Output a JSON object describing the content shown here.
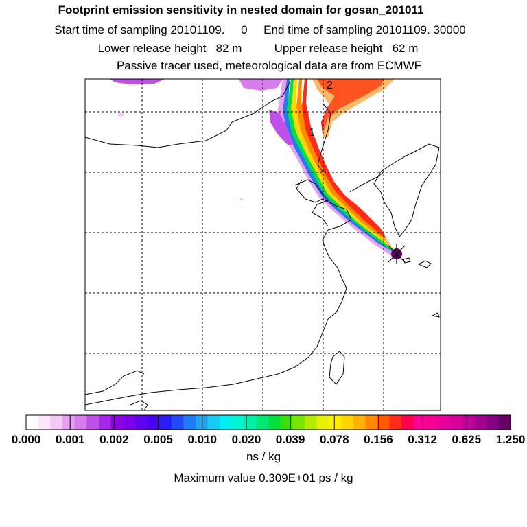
{
  "header": {
    "title": "Footprint emission sensitivity in nested domain for gosan_201011",
    "sampling": "Start time of sampling 20101109.     0     End time of sampling 20101109. 30000",
    "release": "Lower release height   82 m          Upper release height   62 m",
    "tracer": "Passive tracer used, meteorological data are from ECMWF"
  },
  "map": {
    "labels": [
      "1",
      "2"
    ],
    "receptor_marker": "star-icon"
  },
  "colorbar": {
    "colors": [
      "#ffffff",
      "#fde6fd",
      "#f6c8f8",
      "#e8a0f2",
      "#d67ced",
      "#c050ea",
      "#a628ea",
      "#9100ea",
      "#7c00ec",
      "#6200f0",
      "#4a00f4",
      "#2d1cf6",
      "#1f4af6",
      "#1d7cf6",
      "#1ba6f4",
      "#16ccf0",
      "#00f0f0",
      "#00f6d0",
      "#00f0a6",
      "#00e878",
      "#00e040",
      "#3ce000",
      "#7ae600",
      "#b2ec00",
      "#e6f000",
      "#ffee00",
      "#ffd600",
      "#ffb400",
      "#ff8a00",
      "#ff5a00",
      "#ff2a1a",
      "#ff0050",
      "#ff0096",
      "#f60096",
      "#e8009a",
      "#d8009c",
      "#c0009a",
      "#a40090",
      "#860082",
      "#640066"
    ],
    "ticks": [
      "0.000",
      "0.001",
      "0.002",
      "0.005",
      "0.010",
      "0.020",
      "0.039",
      "0.078",
      "0.156",
      "0.312",
      "0.625",
      "1.250"
    ],
    "unit": "ns / kg",
    "maximum": "Maximum value  0.309E+01 ps / kg"
  }
}
